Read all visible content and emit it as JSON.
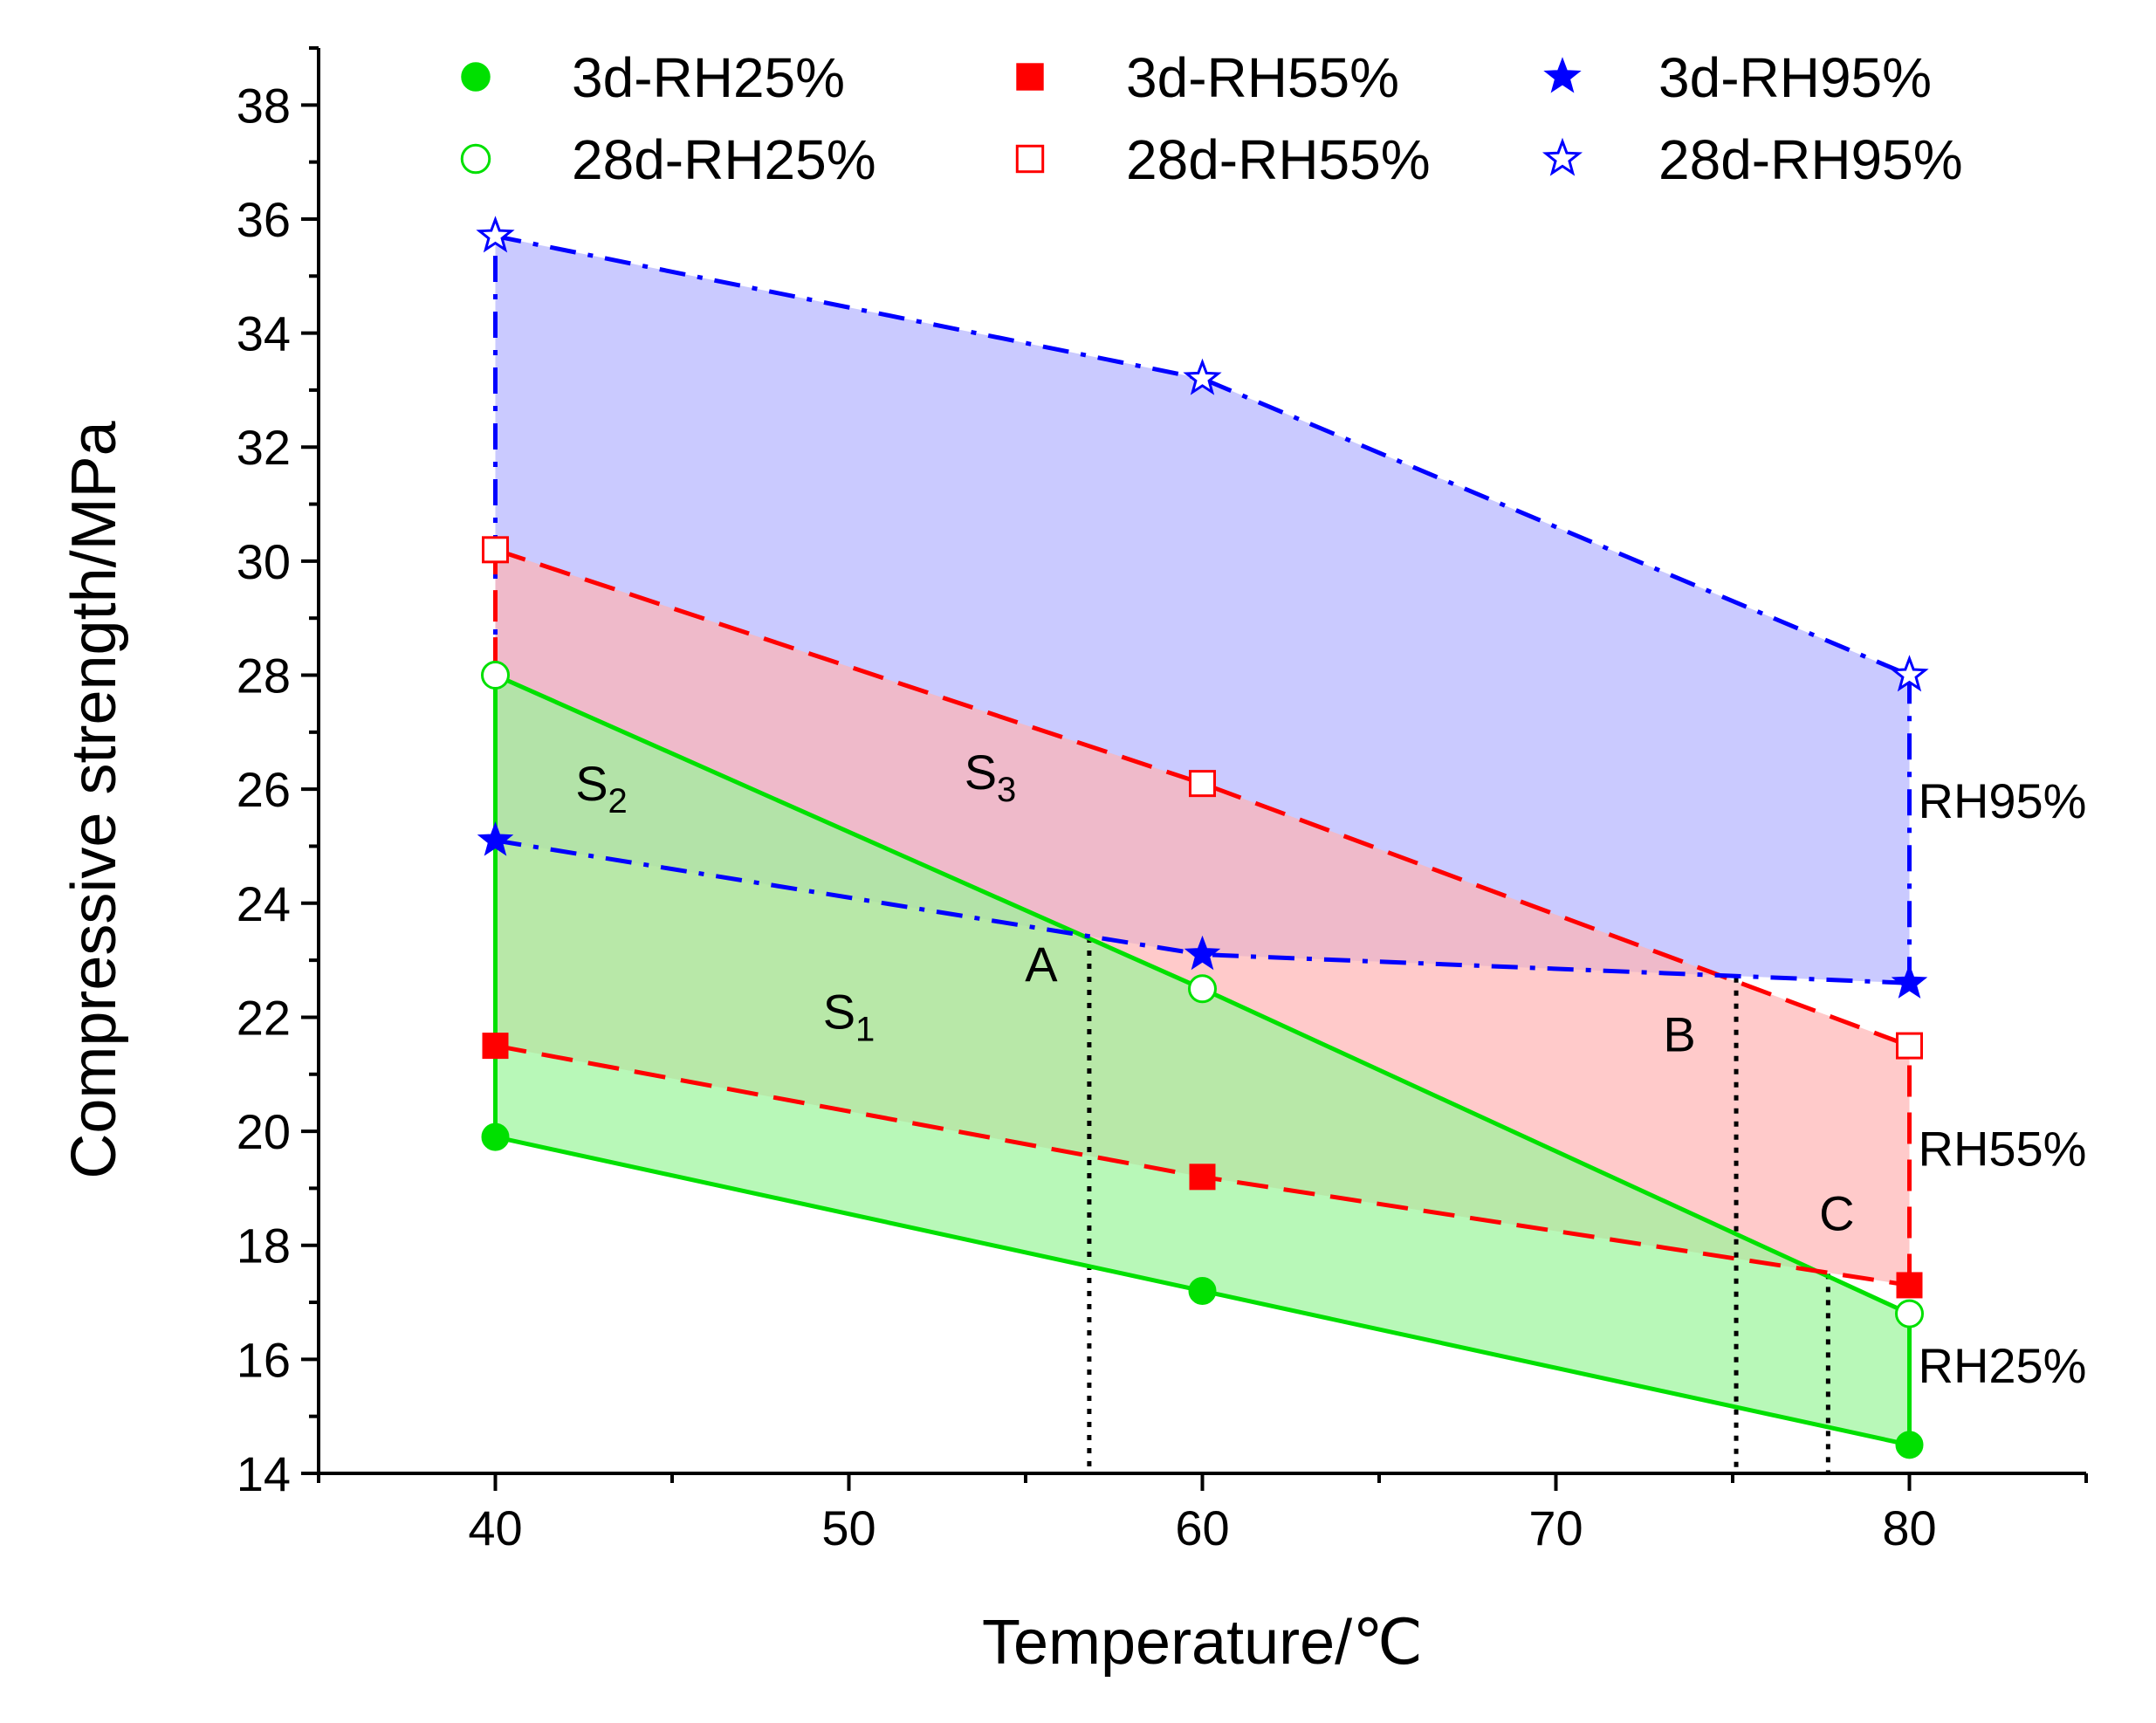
{
  "chart_data": {
    "type": "line",
    "xlabel": "Temperature/℃",
    "ylabel": "Compressive strength/MPa",
    "xlim": [
      35,
      85
    ],
    "ylim": [
      14,
      39
    ],
    "xticks": [
      40,
      50,
      60,
      70,
      80
    ],
    "yticks": [
      14,
      16,
      18,
      20,
      22,
      24,
      26,
      28,
      30,
      32,
      34,
      36,
      38
    ],
    "x": [
      40,
      60,
      80
    ],
    "series": [
      {
        "name": "3d-RH25%",
        "values": [
          19.9,
          17.2,
          14.5
        ],
        "color": "#00e000",
        "marker": "circle",
        "filled": true,
        "dash": "solid"
      },
      {
        "name": "28d-RH25%",
        "values": [
          28.0,
          22.5,
          16.8
        ],
        "color": "#00e000",
        "marker": "circle",
        "filled": false,
        "dash": "solid"
      },
      {
        "name": "3d-RH55%",
        "values": [
          21.5,
          19.2,
          17.3
        ],
        "color": "#ff0000",
        "marker": "square",
        "filled": true,
        "dash": "dash"
      },
      {
        "name": "28d-RH55%",
        "values": [
          30.2,
          26.1,
          21.5
        ],
        "color": "#ff0000",
        "marker": "square",
        "filled": false,
        "dash": "dash"
      },
      {
        "name": "3d-RH95%",
        "values": [
          25.1,
          23.1,
          22.6
        ],
        "color": "#0000ff",
        "marker": "star",
        "filled": true,
        "dash": "dashdot"
      },
      {
        "name": "28d-RH95%",
        "values": [
          35.7,
          33.2,
          28.0
        ],
        "color": "#0000ff",
        "marker": "star",
        "filled": false,
        "dash": "dashdot"
      }
    ],
    "bands": [
      {
        "name": "RH95%",
        "lower": "3d-RH95%",
        "upper": "28d-RH95%",
        "fill": "#b4b4ff"
      },
      {
        "name": "RH55%",
        "lower": "3d-RH55%",
        "upper": "28d-RH55%",
        "fill": "#ffb4b4"
      },
      {
        "name": "RH25%",
        "lower": "3d-RH25%",
        "upper": "28d-RH25%",
        "fill": "#9af59a"
      }
    ],
    "region_labels": [
      {
        "base": "S",
        "sub": "1",
        "x": 50,
        "y": 21.8
      },
      {
        "base": "S",
        "sub": "2",
        "x": 43,
        "y": 25.8
      },
      {
        "base": "S",
        "sub": "3",
        "x": 54,
        "y": 26.0
      }
    ],
    "intersections": [
      {
        "label": "A",
        "x": 56.8,
        "y": 23.4
      },
      {
        "label": "B",
        "x": 75.1,
        "y": 22.7
      },
      {
        "label": "C",
        "x": 77.7,
        "y": 17.5
      }
    ],
    "band_labels": [
      {
        "text": "RH95%",
        "y": 25.8
      },
      {
        "text": "RH55%",
        "y": 19.7
      },
      {
        "text": "RH25%",
        "y": 15.9
      }
    ]
  }
}
